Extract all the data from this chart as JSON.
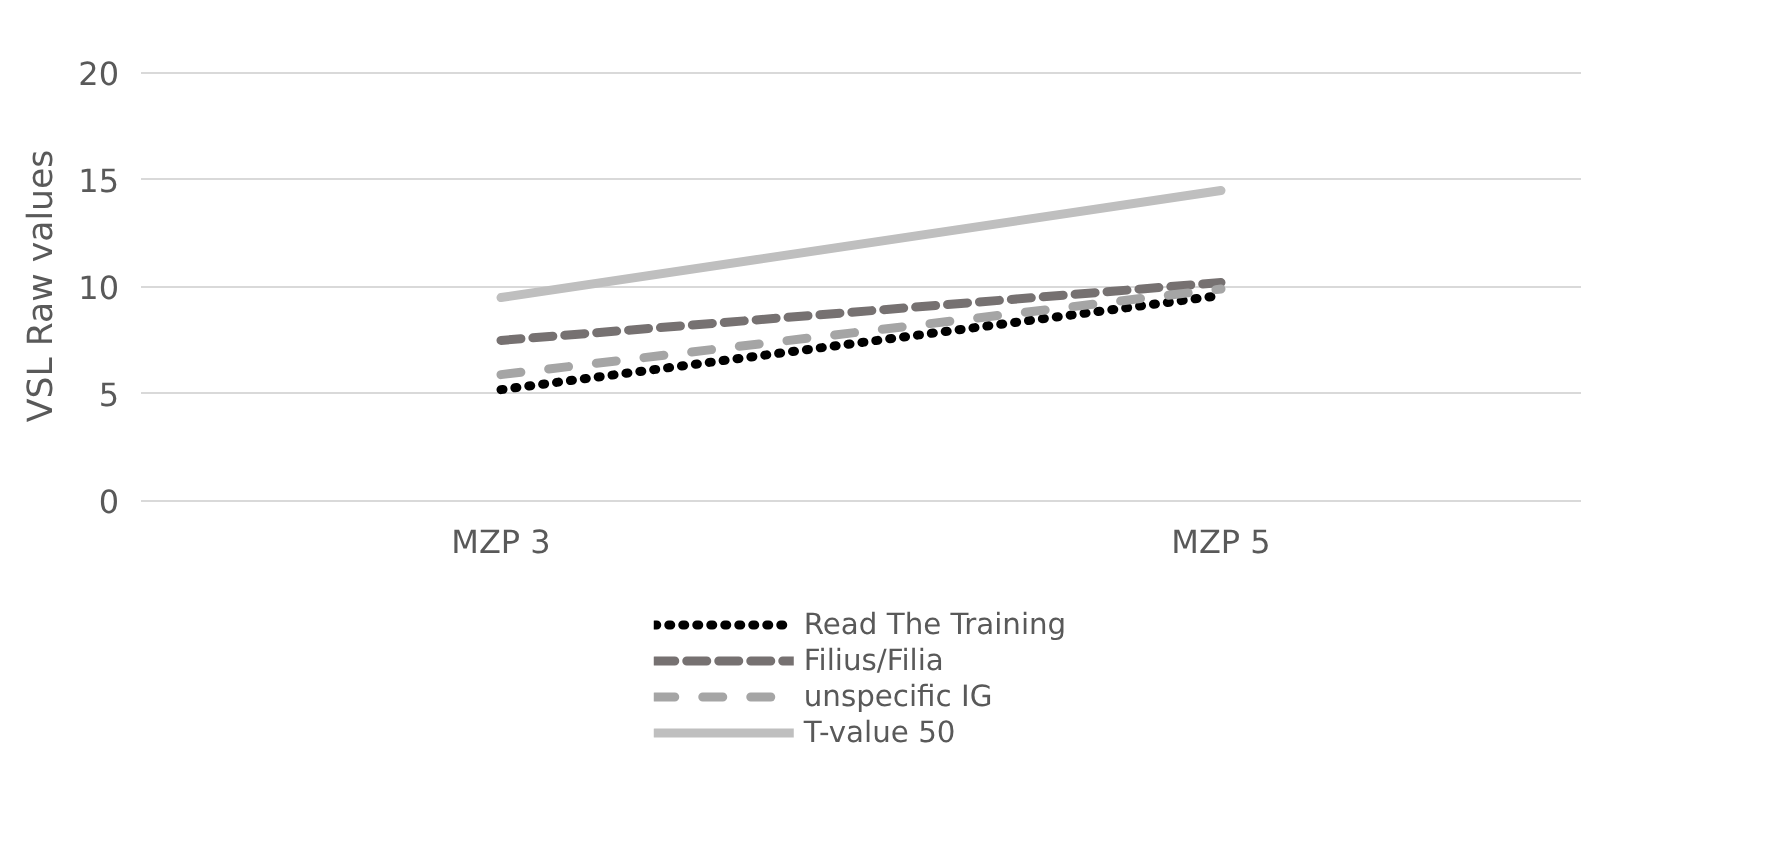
{
  "chart_data": {
    "type": "line",
    "ylabel": "VSL Raw values",
    "categories": [
      "MZP 3",
      "MZP 5"
    ],
    "ylim": [
      0,
      20
    ],
    "yticks": [
      0,
      5,
      10,
      15,
      20
    ],
    "grid": "y",
    "legend": "bottom",
    "marker": "none",
    "series": [
      {
        "name": "Read The Training",
        "color": "#000000",
        "values": [
          5.2,
          9.6
        ],
        "line_style": "dotted"
      },
      {
        "name": "Filius/Filia",
        "color": "#767171",
        "values": [
          7.5,
          10.2
        ],
        "line_style": "dashed"
      },
      {
        "name": "unspecific IG",
        "color": "#a5a5a5",
        "values": [
          5.9,
          9.9
        ],
        "line_style": "dashed"
      },
      {
        "name": "T-value 50",
        "color": "#bfbfbf",
        "values": [
          9.5,
          14.5
        ],
        "line_style": "solid"
      }
    ]
  }
}
